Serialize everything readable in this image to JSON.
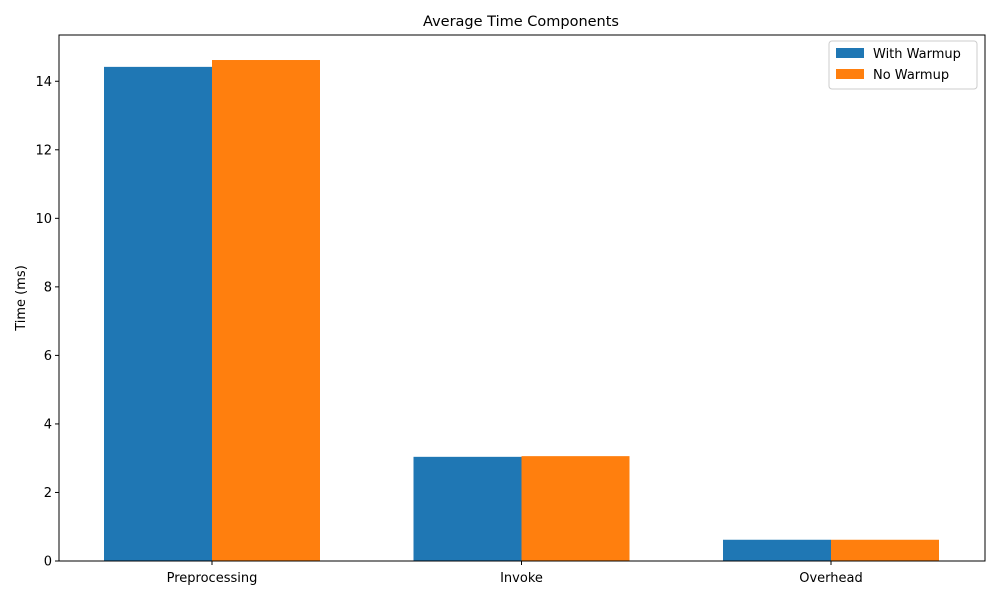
{
  "chart_data": {
    "type": "bar",
    "title": "Average Time Components",
    "xlabel": "",
    "ylabel": "Time (ms)",
    "categories": [
      "Preprocessing",
      "Invoke",
      "Overhead"
    ],
    "series": [
      {
        "name": "With Warmup",
        "color": "#1f77b4",
        "values": [
          14.42,
          3.04,
          0.62
        ]
      },
      {
        "name": "No Warmup",
        "color": "#ff7f0e",
        "values": [
          14.62,
          3.06,
          0.62
        ]
      }
    ],
    "ylim": [
      0,
      15.35
    ],
    "yticks": [
      0,
      2,
      4,
      6,
      8,
      10,
      12,
      14
    ],
    "grid": false,
    "legend": {
      "position": "top-right"
    }
  }
}
